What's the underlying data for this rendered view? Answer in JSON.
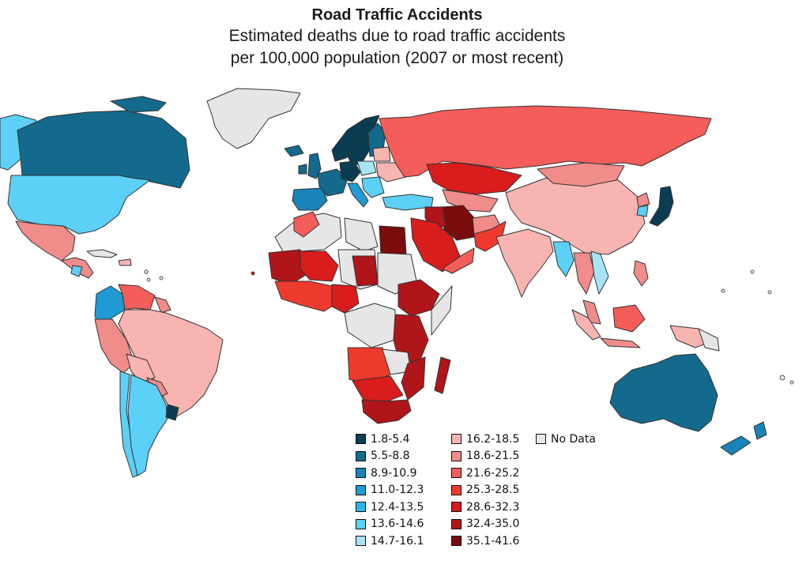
{
  "title": "Road Traffic Accidents",
  "subtitle_line1": "Estimated deaths due to road traffic accidents",
  "subtitle_line2": "per 100,000 population (2007 or most recent)",
  "legend": {
    "col1": [
      {
        "label": "1.8-5.4",
        "color": "#0a3d52"
      },
      {
        "label": "5.5-8.8",
        "color": "#136a8c"
      },
      {
        "label": "8.9-10.9",
        "color": "#1a83b8"
      },
      {
        "label": "11.0-12.3",
        "color": "#1f9ad4"
      },
      {
        "label": "12.4-13.5",
        "color": "#2eb4ea"
      },
      {
        "label": "13.6-14.6",
        "color": "#5cd0f6"
      },
      {
        "label": "14.7-16.1",
        "color": "#a8e4f8"
      }
    ],
    "col2": [
      {
        "label": "16.2-18.5",
        "color": "#f8b4b1"
      },
      {
        "label": "18.6-21.5",
        "color": "#f08c8a"
      },
      {
        "label": "21.6-25.2",
        "color": "#f45d5a"
      },
      {
        "label": "25.3-28.5",
        "color": "#ef3a2e"
      },
      {
        "label": "28.6-32.3",
        "color": "#d91c1c"
      },
      {
        "label": "32.4-35.0",
        "color": "#b0151a"
      },
      {
        "label": "35.1-41.6",
        "color": "#7a0c0e"
      }
    ],
    "col3": [
      {
        "label": "No Data",
        "color": "#e6e6e6"
      }
    ]
  }
}
